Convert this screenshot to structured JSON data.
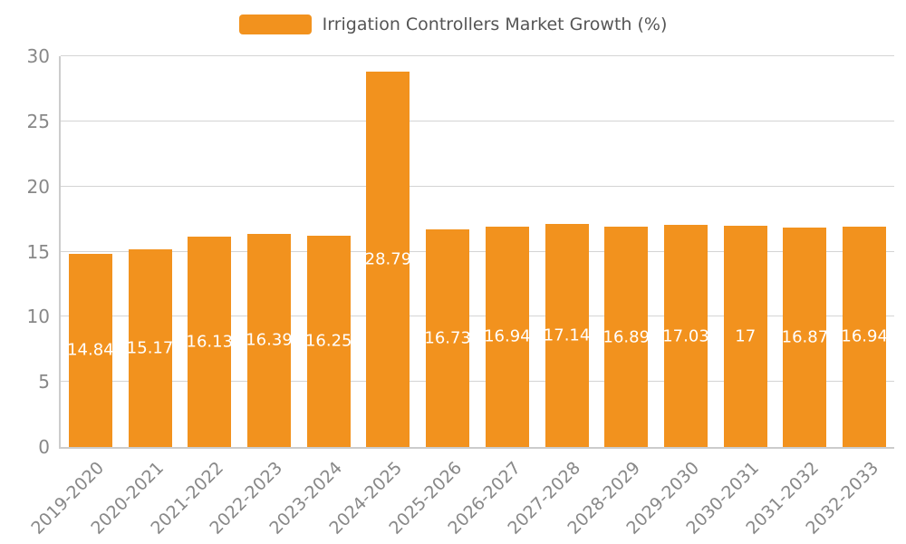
{
  "chart_data": {
    "type": "bar",
    "title": "Irrigation Controllers Market Growth (%)",
    "categories": [
      "2019-2020",
      "2020-2021",
      "2021-2022",
      "2022-2023",
      "2023-2024",
      "2024-2025",
      "2025-2026",
      "2026-2027",
      "2027-2028",
      "2028-2029",
      "2029-2030",
      "2030-2031",
      "2031-2032",
      "2032-2033"
    ],
    "values": [
      14.84,
      15.17,
      16.13,
      16.39,
      16.25,
      28.79,
      16.73,
      16.94,
      17.14,
      16.89,
      17.03,
      17,
      16.87,
      16.94
    ],
    "value_labels": [
      "14.84",
      "15.17",
      "16.13",
      "16.39",
      "16.25",
      "28.79",
      "16.73",
      "16.94",
      "17.14",
      "16.89",
      "17.03",
      "17",
      "16.87",
      "16.94"
    ],
    "xlabel": "",
    "ylabel": "",
    "ylim": [
      0,
      30
    ],
    "yticks": [
      0,
      5,
      10,
      15,
      20,
      25,
      30
    ],
    "grid": true,
    "legend_position": "top",
    "bar_color": "#F2921E",
    "bar_label_color": "#ffffff",
    "axis_text_color": "#888888",
    "grid_color": "#d4d4d4",
    "title_color": "#555555"
  }
}
